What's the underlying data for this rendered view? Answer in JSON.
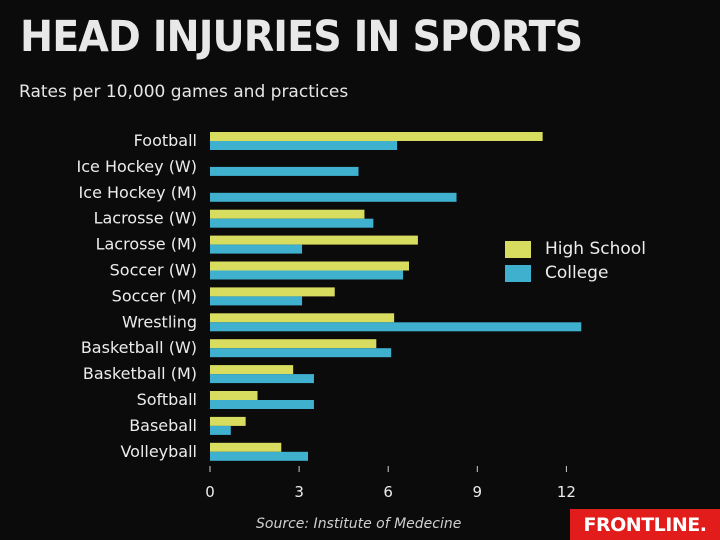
{
  "header": {
    "title": "HEAD INJURIES IN SPORTS",
    "subtitle": "Rates per 10,000 games and practices"
  },
  "footer": {
    "source": "Source: Institute of Medecine",
    "logo_text": "FRONTLINE."
  },
  "colors": {
    "high_school": "#d9dd5f",
    "college": "#3fb1cf",
    "background": "#0b0b0b"
  },
  "chart_data": {
    "type": "bar",
    "orientation": "horizontal",
    "title": "HEAD INJURIES IN SPORTS",
    "subtitle": "Rates per 10,000 games and practices",
    "categories": [
      "Football",
      "Ice Hockey (W)",
      "Ice Hockey (M)",
      "Lacrosse (W)",
      "Lacrosse (M)",
      "Soccer (W)",
      "Soccer (M)",
      "Wrestling",
      "Basketball (W)",
      "Basketball (M)",
      "Softball",
      "Baseball",
      "Volleyball"
    ],
    "series": [
      {
        "name": "High School",
        "values": [
          11.2,
          null,
          null,
          5.2,
          7.0,
          6.7,
          4.2,
          6.2,
          5.6,
          2.8,
          1.6,
          1.2,
          2.4
        ]
      },
      {
        "name": "College",
        "values": [
          6.3,
          5.0,
          8.3,
          5.5,
          3.1,
          6.5,
          3.1,
          12.5,
          6.1,
          3.5,
          3.5,
          0.7,
          3.3
        ]
      }
    ],
    "xticks": [
      0,
      3,
      6,
      9,
      12
    ],
    "xlim": [
      0,
      13
    ],
    "grid": false,
    "legend_position": "right"
  }
}
